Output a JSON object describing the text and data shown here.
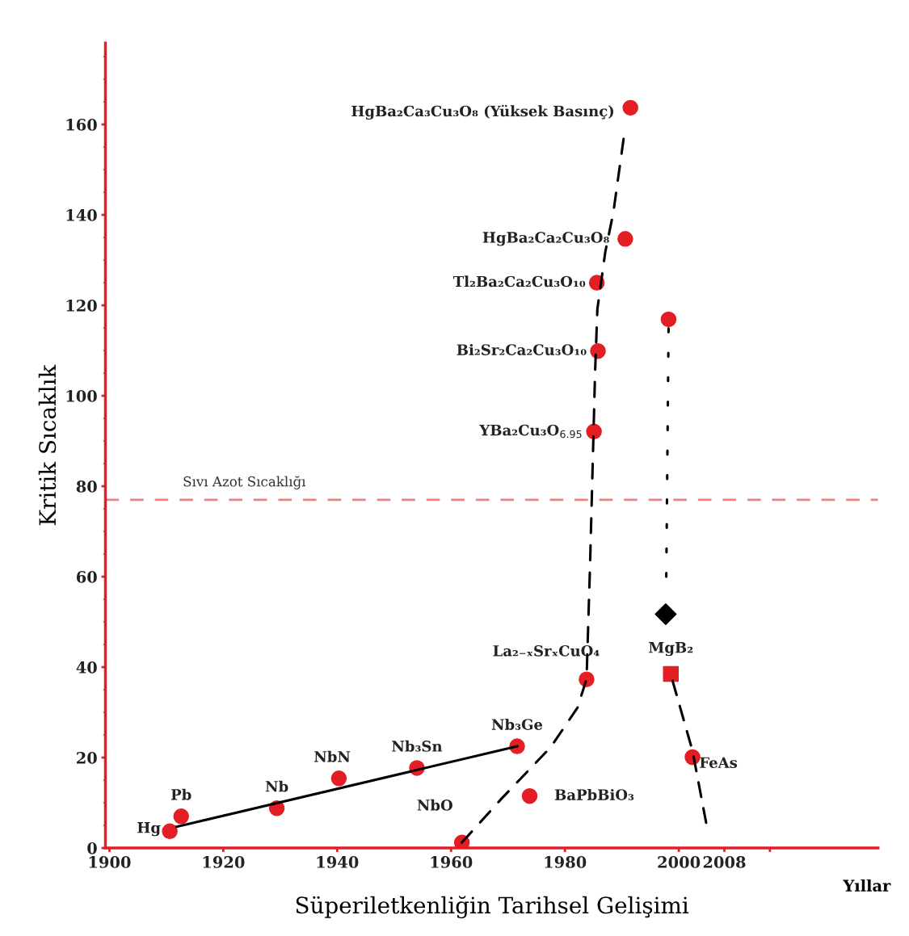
{
  "chart_data": {
    "type": "scatter",
    "xlabel": "Süperiletkenliğin Tarihsel Gelişimi",
    "ylabel": "Kritik Sıcaklık",
    "annotations": [
      "Yıllar",
      {
        "text": "Hg",
        "x": 1910.6,
        "y": 3.7
      },
      {
        "text": "Pb",
        "x": 1912.6,
        "y": 7.0
      },
      {
        "text": "Nb",
        "x": 1929.4,
        "y": 8.8
      },
      {
        "text": "NbN",
        "x": 1940.3,
        "y": 15.4
      },
      {
        "text": "Nb₃Sn",
        "x": 1954.0,
        "y": 17.7
      },
      {
        "text": "Nb₃Ge",
        "x": 1971.6,
        "y": 22.5
      },
      {
        "text": "NbO",
        "x": 1961.9,
        "y": 1.2
      },
      {
        "text": "BaPbBiO₃",
        "x": 1973.8,
        "y": 11.5
      },
      {
        "text": "La₂₋ₓSrₓCuO₄",
        "x": 1983.8,
        "y": 37.3
      },
      {
        "text": "YBa₂Cu₃O$_{6.95}$",
        "x": 1985.1,
        "y": 92.1
      },
      {
        "text": "Bi₂Sr₂Ca₂Cu₃O₁₀",
        "x": 1985.8,
        "y": 109.9
      },
      {
        "text": "Tl₂Ba₂Ca₂Cu₃O₁₀",
        "x": 1985.6,
        "y": 125.0
      },
      {
        "text": "HgBa₂Ca₂Cu₃O₈",
        "x": 1990.6,
        "y": 134.7
      },
      {
        "text": "HgBa₂Ca₃Cu₃O₈ (Yüksek Basınç)",
        "x": 1991.5,
        "y": 163.7
      },
      {
        "text": "FeAs",
        "x": 2002.4,
        "y": 20.1
      },
      {
        "text": "MgB₂",
        "x": 1998.6,
        "y": 38.5
      }
    ],
    "xlim": [
      1899.3,
      2035
    ],
    "ylim": [
      0,
      178
    ],
    "xticks": [
      1900,
      1920,
      1940,
      1960,
      1980,
      2000,
      2008,
      {
        "value": 2016,
        "label": null
      }
    ],
    "yticks": [
      0,
      20,
      40,
      60,
      80,
      100,
      120,
      140,
      160
    ],
    "grid": false,
    "legend": false,
    "ref_lines": [
      {
        "axis": "y",
        "value": 77.0,
        "label": "Sıvı Azot Sıcaklığı",
        "color": "#f08080",
        "line_style": "dashed"
      }
    ],
    "series": [
      {
        "marker": "circle",
        "color": "#e31e24",
        "x": [
          1910.6,
          1912.6,
          1929.4,
          1940.3,
          1954.0,
          1971.6,
          1961.9,
          1973.8,
          1983.8,
          1985.1,
          1985.8,
          1985.6,
          1990.6,
          1991.5,
          1998.2,
          2002.4
        ],
        "values": [
          3.7,
          7.0,
          8.8,
          15.4,
          17.7,
          22.5,
          1.2,
          11.5,
          37.3,
          92.1,
          109.9,
          125.0,
          134.7,
          163.7,
          116.9,
          20.1
        ]
      },
      {
        "marker": "square",
        "color": "#e31e24",
        "x": [
          1998.6
        ],
        "values": [
          38.5
        ]
      },
      {
        "marker": "diamond",
        "color": "#000000",
        "x": [
          1997.7
        ],
        "values": [
          51.7
        ]
      },
      {
        "type": "line",
        "line_style": "solid",
        "color": "#000000",
        "x": [
          1911.8,
          1971.6
        ],
        "values": [
          4.7,
          22.5
        ]
      },
      {
        "type": "line",
        "line_style": "dashed",
        "color": "#000000",
        "x": [
          1961.9,
          1969.0,
          1977.5,
          1982.2,
          1983.8,
          1984.4,
          1984.8,
          1985.3,
          1985.7,
          1987.1,
          1988.5,
          1990.3
        ],
        "values": [
          1.2,
          11.1,
          22.3,
          31.0,
          37.4,
          62.1,
          81.2,
          105.4,
          119.2,
          131.9,
          140.5,
          156.8
        ]
      },
      {
        "type": "line",
        "line_style": "dotted",
        "color": "#000000",
        "x": [
          1997.8,
          1998.2
        ],
        "values": [
          60.0,
          114.9
        ]
      },
      {
        "type": "line",
        "line_style": "dashed",
        "color": "#000000",
        "x": [
          1998.9,
          2002.4,
          2004.8
        ],
        "values": [
          37.0,
          21.5,
          5.6
        ]
      }
    ]
  }
}
